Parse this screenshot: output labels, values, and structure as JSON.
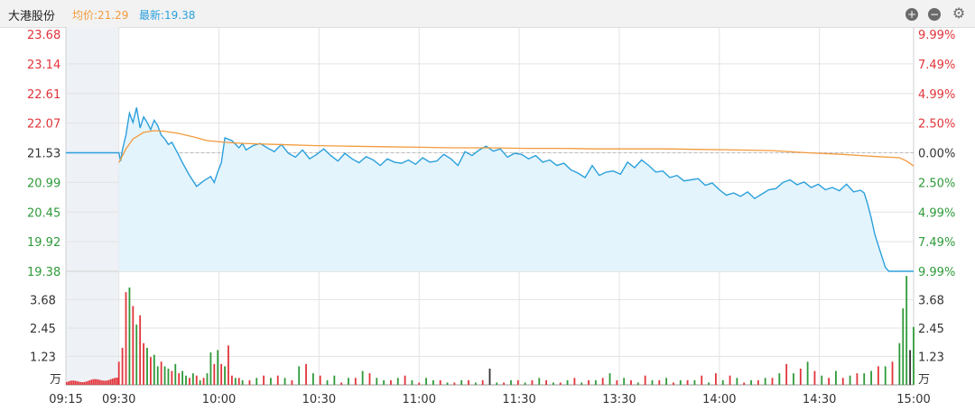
{
  "header": {
    "stock_name": "大港股份",
    "avg_label": "均价:21.29",
    "last_label": "最新:19.38"
  },
  "controls": {
    "zoom_in_icon": "plus-circle-icon",
    "zoom_out_icon": "minus-circle-icon",
    "settings_icon": "gear-icon",
    "zoom_in_glyph": "+",
    "zoom_out_glyph": "−",
    "settings_glyph": "⚙"
  },
  "colors": {
    "price_line": "#2ba0dc",
    "avg_line": "#f39a3c",
    "up": "#e2343a",
    "down": "#2e9a39",
    "neutral": "#333333",
    "area_fill": "#e4f4fd",
    "premarket_shade": "#eef1f6",
    "grid": "#e3e3e3"
  },
  "chart_data": {
    "type": "line",
    "title": "",
    "prev_close": 21.53,
    "price_axis": {
      "ticks": [
        "23.68",
        "23.14",
        "22.61",
        "22.07",
        "21.53",
        "20.99",
        "20.45",
        "19.92",
        "19.38"
      ],
      "pct_ticks": [
        "9.99%",
        "7.49%",
        "4.99%",
        "2.50%",
        "0.00%",
        "2.50%",
        "4.99%",
        "7.49%",
        "9.99%"
      ],
      "ylim": [
        19.38,
        23.68
      ]
    },
    "volume_axis": {
      "ticks": [
        "3.68",
        "2.45",
        "1.23"
      ],
      "unit": "万",
      "ylim": [
        0,
        4.9
      ]
    },
    "x_ticks": [
      "09:15",
      "09:30",
      "10:00",
      "10:30",
      "11:00",
      "11:30",
      "13:30",
      "14:00",
      "14:30",
      "15:00"
    ],
    "series": [
      {
        "key": "price",
        "x": [
          0,
          15,
          15.5,
          16,
          17,
          18,
          19,
          20,
          21,
          22,
          23,
          24,
          25,
          26,
          27,
          28,
          29,
          30,
          31,
          32,
          33,
          35,
          37,
          39,
          41,
          42,
          43,
          44,
          45,
          47,
          49,
          50,
          51,
          53,
          55,
          57,
          59,
          61,
          63,
          65,
          67,
          69,
          71,
          73,
          75,
          77,
          79,
          81,
          83,
          85,
          87,
          89,
          91,
          93,
          95,
          97,
          99,
          101,
          103,
          105,
          107,
          109,
          111,
          113,
          115,
          117,
          119,
          121,
          123,
          125,
          127,
          129,
          131,
          133,
          135,
          137,
          139,
          141,
          143,
          145,
          147,
          149,
          151,
          153,
          155,
          157,
          159,
          161,
          163,
          165,
          167,
          169,
          171,
          173,
          175,
          177,
          179,
          181,
          183,
          185,
          187,
          189,
          191,
          193,
          195,
          197,
          199,
          201,
          203,
          205,
          207,
          209,
          211,
          213,
          215,
          217,
          219,
          221,
          223,
          225,
          226,
          227,
          228,
          229,
          230,
          231,
          232,
          233,
          234,
          235,
          236,
          237,
          238,
          239,
          240
        ],
        "y": [
          21.53,
          21.53,
          21.38,
          21.58,
          21.85,
          22.25,
          22.08,
          22.35,
          21.98,
          22.18,
          22.08,
          21.95,
          22.12,
          22.02,
          21.85,
          21.78,
          21.68,
          21.72,
          21.6,
          21.48,
          21.35,
          21.12,
          20.92,
          21.02,
          21.1,
          20.99,
          21.18,
          21.35,
          21.8,
          21.75,
          21.62,
          21.7,
          21.58,
          21.66,
          21.7,
          21.62,
          21.55,
          21.68,
          21.52,
          21.45,
          21.58,
          21.42,
          21.5,
          21.6,
          21.48,
          21.38,
          21.52,
          21.42,
          21.35,
          21.46,
          21.4,
          21.3,
          21.42,
          21.36,
          21.34,
          21.4,
          21.32,
          21.44,
          21.36,
          21.38,
          21.5,
          21.42,
          21.3,
          21.55,
          21.48,
          21.58,
          21.65,
          21.56,
          21.6,
          21.45,
          21.52,
          21.5,
          21.42,
          21.48,
          21.36,
          21.4,
          21.3,
          21.34,
          21.22,
          21.16,
          21.08,
          21.3,
          21.12,
          21.18,
          21.2,
          21.14,
          21.36,
          21.26,
          21.4,
          21.3,
          21.18,
          21.2,
          21.08,
          21.12,
          21.02,
          21.04,
          21.06,
          20.94,
          20.98,
          20.86,
          20.76,
          20.8,
          20.74,
          20.82,
          20.7,
          20.78,
          20.86,
          20.88,
          20.99,
          21.04,
          20.95,
          21.0,
          20.9,
          20.96,
          20.86,
          20.9,
          20.84,
          20.96,
          20.82,
          20.85,
          20.8,
          20.6,
          20.35,
          20.05,
          19.85,
          19.65,
          19.45,
          19.38,
          19.38,
          19.38,
          19.38,
          19.38,
          19.38,
          19.38,
          19.38
        ]
      },
      {
        "key": "avg",
        "x": [
          15,
          17,
          19,
          22,
          25,
          28,
          32,
          36,
          40,
          45,
          50,
          60,
          70,
          80,
          90,
          100,
          110,
          120,
          130,
          140,
          150,
          160,
          170,
          180,
          190,
          200,
          210,
          220,
          225,
          230,
          233,
          236,
          238,
          240
        ],
        "y": [
          21.35,
          21.6,
          21.78,
          21.9,
          21.93,
          21.92,
          21.88,
          21.82,
          21.75,
          21.72,
          21.7,
          21.68,
          21.66,
          21.65,
          21.64,
          21.63,
          21.62,
          21.62,
          21.61,
          21.61,
          21.6,
          21.6,
          21.6,
          21.59,
          21.58,
          21.57,
          21.53,
          21.5,
          21.48,
          21.46,
          21.45,
          21.44,
          21.38,
          21.29
        ]
      }
    ],
    "volume": {
      "x": [
        15,
        16,
        17,
        18,
        19,
        20,
        21,
        22,
        23,
        24,
        25,
        26,
        27,
        28,
        29,
        30,
        31,
        32,
        33,
        34,
        35,
        36,
        37,
        38,
        39,
        40,
        41,
        42,
        43,
        44,
        45,
        46,
        47,
        48,
        49,
        50,
        52,
        54,
        56,
        58,
        60,
        62,
        64,
        66,
        68,
        70,
        72,
        74,
        76,
        78,
        80,
        82,
        84,
        86,
        88,
        90,
        92,
        94,
        96,
        98,
        100,
        102,
        104,
        106,
        108,
        110,
        112,
        114,
        116,
        118,
        120,
        122,
        124,
        126,
        128,
        130,
        132,
        134,
        136,
        138,
        140,
        142,
        144,
        146,
        148,
        150,
        152,
        154,
        156,
        158,
        160,
        162,
        164,
        166,
        168,
        170,
        172,
        174,
        176,
        178,
        180,
        182,
        184,
        186,
        188,
        190,
        192,
        194,
        196,
        198,
        200,
        202,
        204,
        206,
        208,
        210,
        212,
        214,
        216,
        218,
        220,
        222,
        224,
        226,
        228,
        230,
        232,
        234,
        236,
        237,
        238,
        239,
        240
      ],
      "v": [
        1.0,
        1.6,
        4.0,
        4.2,
        3.4,
        2.6,
        3.0,
        1.8,
        1.6,
        1.2,
        1.3,
        0.8,
        1.0,
        0.8,
        0.7,
        0.6,
        0.9,
        0.5,
        0.6,
        0.4,
        0.3,
        0.5,
        0.4,
        0.2,
        0.3,
        0.5,
        1.4,
        0.9,
        1.5,
        0.9,
        0.8,
        1.7,
        0.4,
        0.3,
        0.3,
        0.2,
        0.2,
        0.3,
        0.4,
        0.3,
        0.4,
        0.3,
        0.2,
        0.8,
        0.9,
        0.5,
        0.4,
        0.2,
        0.4,
        0.1,
        0.3,
        0.3,
        0.6,
        0.5,
        0.3,
        0.2,
        0.2,
        0.3,
        0.4,
        0.2,
        0.1,
        0.3,
        0.2,
        0.2,
        0.1,
        0.1,
        0.2,
        0.2,
        0.1,
        0.2,
        0.7,
        0.1,
        0.1,
        0.2,
        0.2,
        0.1,
        0.2,
        0.3,
        0.2,
        0.1,
        0.1,
        0.2,
        0.3,
        0.1,
        0.2,
        0.2,
        0.3,
        0.5,
        0.2,
        0.3,
        0.2,
        0.1,
        0.4,
        0.2,
        0.2,
        0.3,
        0.1,
        0.2,
        0.2,
        0.2,
        0.4,
        0.1,
        0.5,
        0.2,
        0.4,
        0.3,
        0.1,
        0.2,
        0.2,
        0.3,
        0.3,
        0.5,
        0.9,
        0.5,
        0.7,
        1.0,
        0.6,
        0.4,
        0.3,
        0.6,
        0.3,
        0.4,
        0.5,
        0.5,
        0.6,
        0.8,
        0.8,
        1.0,
        1.8,
        3.3,
        4.7,
        1.5,
        2.5
      ],
      "dir": [
        "u",
        "u",
        "u",
        "d",
        "u",
        "d",
        "u",
        "u",
        "d",
        "u",
        "d",
        "d",
        "u",
        "d",
        "d",
        "u",
        "d",
        "u",
        "d",
        "d",
        "u",
        "d",
        "u",
        "d",
        "u",
        "d",
        "d",
        "u",
        "d",
        "u",
        "d",
        "u",
        "u",
        "d",
        "u",
        "d",
        "u",
        "d",
        "u",
        "d",
        "u",
        "d",
        "u",
        "d",
        "u",
        "d",
        "u",
        "d",
        "d",
        "u",
        "d",
        "u",
        "d",
        "u",
        "d",
        "d",
        "u",
        "d",
        "u",
        "d",
        "u",
        "d",
        "d",
        "u",
        "d",
        "u",
        "d",
        "u",
        "d",
        "u",
        "n",
        "d",
        "u",
        "d",
        "u",
        "d",
        "u",
        "d",
        "u",
        "d",
        "u",
        "d",
        "u",
        "d",
        "u",
        "d",
        "u",
        "d",
        "u",
        "d",
        "u",
        "d",
        "u",
        "d",
        "u",
        "d",
        "u",
        "d",
        "u",
        "d",
        "u",
        "d",
        "u",
        "d",
        "u",
        "d",
        "u",
        "d",
        "u",
        "d",
        "u",
        "d",
        "u",
        "d",
        "u",
        "d",
        "u",
        "d",
        "u",
        "d",
        "u",
        "d",
        "u",
        "d",
        "d",
        "u",
        "d",
        "u",
        "d",
        "d",
        "d",
        "n",
        "d"
      ]
    }
  }
}
